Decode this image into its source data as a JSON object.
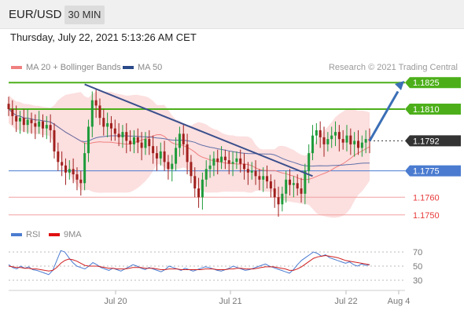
{
  "header": {
    "symbol": "EUR/USD",
    "timeframe": "30 MIN"
  },
  "datetime": "Thursday, July 22, 2021 5:13:26 AM CET",
  "legend": {
    "ma20_bb": {
      "label": "MA 20 + Bollinger Bands",
      "color": "#f08080"
    },
    "ma50": {
      "label": "MA 50",
      "color": "#2a4a8a"
    },
    "rsi": {
      "label": "RSI",
      "color": "#4a7bd0"
    },
    "ma9": {
      "label": "9MA",
      "color": "#e01010"
    }
  },
  "research": "Research © 2021 Trading Central",
  "colors": {
    "green": "#4caf1a",
    "blue": "#4a7bd0",
    "red": "#e83a3a",
    "dark": "#333333",
    "arrow": "#3b6fb6"
  },
  "chart_data": [
    {
      "type": "candlestick",
      "title": "EUR/USD 30 MIN",
      "x_ticks": [
        "Jul 20",
        "Jul 21",
        "Jul 22",
        "Aug 4"
      ],
      "ylim": [
        1.1745,
        1.183
      ],
      "levels": [
        {
          "label": "1.1825",
          "value": 1.1825,
          "kind": "resistance"
        },
        {
          "label": "1.1810",
          "value": 1.181,
          "kind": "resistance"
        },
        {
          "label": "1.1792",
          "value": 1.1792,
          "kind": "last_price"
        },
        {
          "label": "1.1775",
          "value": 1.1775,
          "kind": "pivot"
        },
        {
          "label": "1.1760",
          "value": 1.176,
          "kind": "support"
        },
        {
          "label": "1.1750",
          "value": 1.175,
          "kind": "support"
        }
      ],
      "close": [
        1.181,
        1.1806,
        1.1803,
        1.1805,
        1.1801,
        1.1804,
        1.1802,
        1.18,
        1.1803,
        1.1799,
        1.1801,
        1.1798,
        1.1786,
        1.178,
        1.1778,
        1.1774,
        1.1776,
        1.1773,
        1.177,
        1.1768,
        1.1785,
        1.18,
        1.1815,
        1.1812,
        1.1805,
        1.18,
        1.1802,
        1.1799,
        1.1796,
        1.1794,
        1.1797,
        1.1792,
        1.179,
        1.1794,
        1.1791,
        1.1788,
        1.1793,
        1.1789,
        1.1785,
        1.1782,
        1.1786,
        1.178,
        1.1776,
        1.1779,
        1.1788,
        1.1796,
        1.179,
        1.178,
        1.1772,
        1.1765,
        1.176,
        1.177,
        1.1776,
        1.1778,
        1.1782,
        1.178,
        1.1783,
        1.1781,
        1.1779,
        1.178,
        1.1782,
        1.1779,
        1.1776,
        1.1774,
        1.1775,
        1.1772,
        1.177,
        1.1772,
        1.1769,
        1.1765,
        1.176,
        1.1756,
        1.1762,
        1.177,
        1.1767,
        1.1768,
        1.1765,
        1.1762,
        1.1775,
        1.1785,
        1.1795,
        1.1798,
        1.1794,
        1.179,
        1.1793,
        1.1795,
        1.1797,
        1.1793,
        1.1791,
        1.1795,
        1.179,
        1.1792,
        1.1788,
        1.1791,
        1.1793,
        1.1792
      ]
    },
    {
      "type": "line",
      "title": "RSI",
      "x_ticks": [
        "Jul 20",
        "Jul 21",
        "Jul 22",
        "Aug 4"
      ],
      "y_ticks": [
        "70",
        "50",
        "30"
      ],
      "ylim": [
        20,
        80
      ],
      "series": [
        {
          "name": "RSI",
          "values": [
            52,
            48,
            46,
            50,
            47,
            49,
            45,
            44,
            42,
            40,
            38,
            44,
            58,
            72,
            70,
            62,
            55,
            50,
            48,
            46,
            50,
            55,
            52,
            48,
            46,
            44,
            47,
            45,
            43,
            46,
            49,
            52,
            50,
            47,
            45,
            48,
            46,
            44,
            42,
            45,
            50,
            48,
            46,
            44,
            47,
            45,
            43,
            45,
            47,
            49,
            48,
            46,
            44,
            43,
            45,
            47,
            50,
            48,
            46,
            44,
            45,
            47,
            49,
            51,
            53,
            50,
            48,
            46,
            44,
            42,
            40,
            45,
            52,
            58,
            62,
            66,
            70,
            68,
            64,
            66,
            62,
            60,
            58,
            56,
            54,
            56,
            52,
            50,
            53,
            51,
            52
          ]
        },
        {
          "name": "9MA",
          "values": [
            50,
            49,
            48,
            48,
            47,
            47,
            46,
            46,
            45,
            44,
            43,
            44,
            48,
            54,
            58,
            60,
            59,
            57,
            54,
            51,
            50,
            50,
            50,
            49,
            48,
            47,
            47,
            46,
            46,
            46,
            47,
            48,
            48,
            48,
            47,
            47,
            47,
            46,
            45,
            45,
            46,
            46,
            46,
            45,
            45,
            45,
            45,
            45,
            45,
            46,
            46,
            46,
            45,
            45,
            45,
            46,
            46,
            47,
            47,
            46,
            46,
            46,
            47,
            48,
            49,
            49,
            49,
            48,
            47,
            46,
            44,
            44,
            46,
            49,
            53,
            57,
            61,
            63,
            64,
            65,
            64,
            63,
            62,
            60,
            58,
            57,
            56,
            55,
            54,
            53,
            52
          ]
        }
      ]
    }
  ]
}
